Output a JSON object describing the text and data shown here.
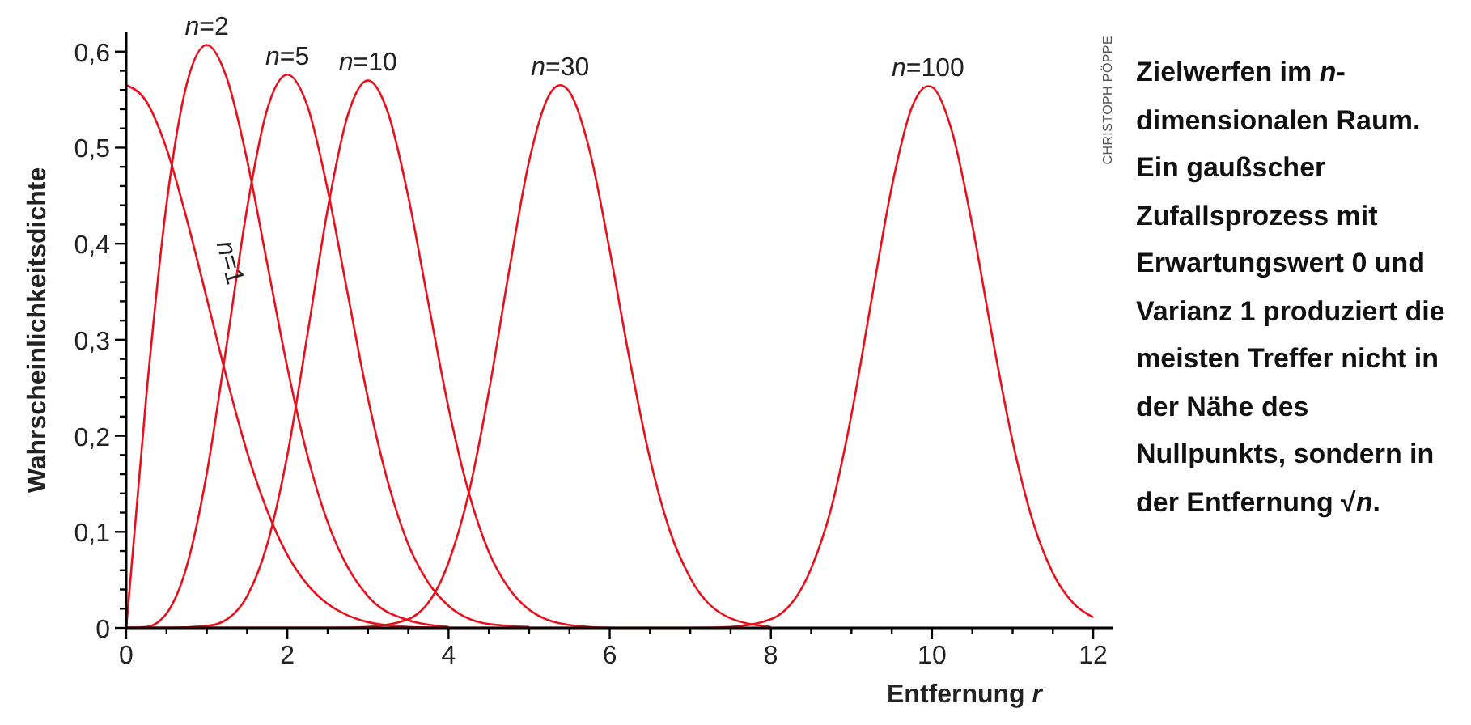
{
  "chart_data": {
    "type": "line",
    "ylabel": "Wahrscheinlichkeitsdichte",
    "xlabel": "Entfernung r",
    "xlim": [
      0,
      12.25
    ],
    "ylim": [
      0,
      0.62
    ],
    "xticks": [
      0,
      {
        "value": 0.5,
        "label": null
      },
      {
        "value": 1,
        "label": null
      },
      {
        "value": 1.5,
        "label": null
      },
      2,
      {
        "value": 2.5,
        "label": null
      },
      {
        "value": 3,
        "label": null
      },
      {
        "value": 3.5,
        "label": null
      },
      4,
      {
        "value": 4.5,
        "label": null
      },
      {
        "value": 5,
        "label": null
      },
      {
        "value": 5.5,
        "label": null
      },
      6,
      {
        "value": 6.5,
        "label": null
      },
      {
        "value": 7,
        "label": null
      },
      {
        "value": 7.5,
        "label": null
      },
      8,
      {
        "value": 8.5,
        "label": null
      },
      {
        "value": 9,
        "label": null
      },
      {
        "value": 9.5,
        "label": null
      },
      10,
      {
        "value": 10.5,
        "label": null
      },
      {
        "value": 11,
        "label": null
      },
      {
        "value": 11.5,
        "label": null
      },
      12
    ],
    "yticks": [
      0,
      {
        "value": 0.02,
        "label": null
      },
      {
        "value": 0.04,
        "label": null
      },
      {
        "value": 0.06,
        "label": null
      },
      {
        "value": 0.08,
        "label": null
      },
      {
        "value": 0.1,
        "label": "0,1"
      },
      {
        "value": 0.12,
        "label": null
      },
      {
        "value": 0.14,
        "label": null
      },
      {
        "value": 0.16,
        "label": null
      },
      {
        "value": 0.18,
        "label": null
      },
      {
        "value": 0.2,
        "label": "0,2"
      },
      {
        "value": 0.22,
        "label": null
      },
      {
        "value": 0.24,
        "label": null
      },
      {
        "value": 0.26,
        "label": null
      },
      {
        "value": 0.28,
        "label": null
      },
      {
        "value": 0.3,
        "label": "0,3"
      },
      {
        "value": 0.32,
        "label": null
      },
      {
        "value": 0.34,
        "label": null
      },
      {
        "value": 0.36,
        "label": null
      },
      {
        "value": 0.38,
        "label": null
      },
      {
        "value": 0.4,
        "label": "0,4"
      },
      {
        "value": 0.42,
        "label": null
      },
      {
        "value": 0.44,
        "label": null
      },
      {
        "value": 0.46,
        "label": null
      },
      {
        "value": 0.48,
        "label": null
      },
      {
        "value": 0.5,
        "label": "0,5"
      },
      {
        "value": 0.52,
        "label": null
      },
      {
        "value": 0.54,
        "label": null
      },
      {
        "value": 0.56,
        "label": null
      },
      {
        "value": 0.58,
        "label": null
      },
      {
        "value": 0.6,
        "label": "0,6"
      }
    ],
    "marker": "none",
    "line_style": "solid",
    "grid": false,
    "legend": false,
    "series": [
      {
        "name": "n=1",
        "color": "#e8101c",
        "x": [
          0,
          0.25,
          0.5,
          0.75,
          1,
          1.25,
          1.5,
          1.75,
          2,
          2.25,
          2.5,
          2.75,
          3,
          3.5,
          4
        ],
        "values": [
          0.565,
          0.548,
          0.499,
          0.426,
          0.343,
          0.259,
          0.183,
          0.122,
          0.076,
          0.045,
          0.025,
          0.013,
          0.006,
          0.001,
          0
        ]
      },
      {
        "name": "n=2",
        "color": "#e8101c",
        "x": [
          0,
          0.25,
          0.5,
          0.75,
          1,
          1.25,
          1.5,
          1.75,
          2,
          2.25,
          2.5,
          2.75,
          3,
          3.5,
          4
        ],
        "values": [
          0,
          0.242,
          0.441,
          0.566,
          0.607,
          0.572,
          0.487,
          0.379,
          0.271,
          0.179,
          0.11,
          0.063,
          0.033,
          0.008,
          0.001
        ]
      },
      {
        "name": "n=5",
        "color": "#e8101c",
        "x": [
          0,
          0.25,
          0.5,
          0.75,
          1,
          1.25,
          1.5,
          1.75,
          2,
          2.25,
          2.5,
          2.75,
          3,
          3.25,
          3.5,
          3.75,
          4,
          4.5,
          5
        ],
        "values": [
          0,
          0.001,
          0.015,
          0.064,
          0.161,
          0.297,
          0.437,
          0.54,
          0.576,
          0.543,
          0.456,
          0.347,
          0.239,
          0.151,
          0.087,
          0.047,
          0.023,
          0.004,
          0.001
        ]
      },
      {
        "name": "n=10",
        "color": "#e8101c",
        "x": [
          0,
          0.5,
          1,
          1.25,
          1.5,
          1.75,
          2,
          2.25,
          2.5,
          2.75,
          3,
          3.25,
          3.5,
          3.75,
          4,
          4.25,
          4.5,
          4.75,
          5,
          5.5,
          6
        ],
        "values": [
          0,
          0,
          0.002,
          0.009,
          0.033,
          0.087,
          0.18,
          0.306,
          0.436,
          0.534,
          0.57,
          0.536,
          0.449,
          0.338,
          0.229,
          0.141,
          0.079,
          0.041,
          0.019,
          0.003,
          0
        ]
      },
      {
        "name": "n=30",
        "color": "#e8101c",
        "x": [
          0,
          2.5,
          3,
          3.5,
          4,
          4.25,
          4.5,
          4.75,
          5,
          5.25,
          5.385,
          5.5,
          5.75,
          6,
          6.25,
          6.5,
          6.75,
          7,
          7.5,
          8
        ],
        "values": [
          0,
          0,
          0.001,
          0.009,
          0.068,
          0.14,
          0.246,
          0.371,
          0.486,
          0.555,
          0.565,
          0.558,
          0.497,
          0.393,
          0.278,
          0.176,
          0.1,
          0.052,
          0.01,
          0.001
        ]
      },
      {
        "name": "n=100",
        "color": "#e8101c",
        "x": [
          0,
          7,
          7.5,
          8,
          8.5,
          8.75,
          9,
          9.25,
          9.5,
          9.75,
          9.95,
          10,
          10.25,
          10.5,
          10.75,
          11,
          11.25,
          11.5,
          11.75,
          12
        ],
        "values": [
          0,
          0,
          0.001,
          0.009,
          0.062,
          0.125,
          0.222,
          0.342,
          0.459,
          0.542,
          0.564,
          0.563,
          0.516,
          0.419,
          0.302,
          0.194,
          0.111,
          0.057,
          0.026,
          0.011
        ]
      }
    ],
    "annotations": [
      "CHRISTOPH PÖPPE",
      "Zielwerfen im n-dimensionalen Raum. Ein gaußscher Zufallsprozess mit Erwartungswert 0 und Varianz 1 produziert die meisten Treffer nicht in der Nähe des Nullpunkts, sondern in der Entfernung √n."
    ]
  }
}
